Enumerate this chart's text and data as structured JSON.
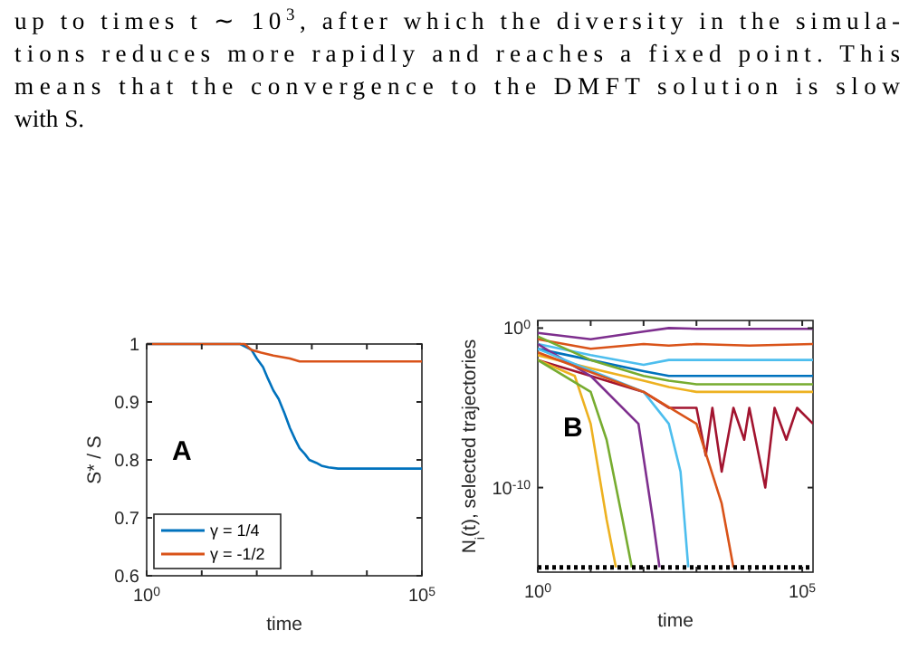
{
  "chart_data": [
    {
      "type": "line",
      "ylabel": "S* / S",
      "xlabel": "time",
      "log": "x",
      "legend": "bottom left",
      "xlim": [
        1,
        100000
      ],
      "ylim": [
        0.6,
        1
      ],
      "xticks": [
        {
          "value": 1,
          "label": "10$^{0}$"
        },
        {
          "value": 10,
          "label": null
        },
        {
          "value": 100,
          "label": null
        },
        {
          "value": 1000,
          "label": null
        },
        {
          "value": 10000,
          "label": null
        },
        {
          "value": 100000,
          "label": "10$^{5}$"
        }
      ],
      "yticks": [
        0.6,
        0.7,
        0.8,
        0.9,
        1
      ],
      "annotations": [
        "up to times t ∼ 10$^{3}$, after which the diversity in the simula-",
        "tions reduces more rapidly and reaches a fixed point. This",
        "means that the convergence to the DMFT solution is slow",
        "with S.",
        "A"
      ],
      "series": [
        {
          "name": "γ = 1/4",
          "color": "#0072bd",
          "x": [
            1,
            50,
            80,
            100,
            130,
            160,
            200,
            250,
            320,
            400,
            500,
            600,
            750,
            900,
            1200,
            1500,
            2000,
            3000,
            100000
          ],
          "values": [
            1,
            1,
            0.99,
            0.975,
            0.96,
            0.94,
            0.92,
            0.905,
            0.88,
            0.855,
            0.835,
            0.82,
            0.81,
            0.8,
            0.795,
            0.79,
            0.787,
            0.785,
            0.785
          ]
        },
        {
          "name": "γ = -1/2",
          "color": "#d95319",
          "x": [
            1,
            60,
            80,
            120,
            200,
            400,
            600,
            100000
          ],
          "values": [
            1,
            1,
            0.99,
            0.985,
            0.98,
            0.975,
            0.97,
            0.97
          ]
        }
      ]
    },
    {
      "type": "line",
      "ylabel": "N$_{i}$(t), selected trajectories",
      "xlabel": "time",
      "log": "xy",
      "xlim": [
        1,
        160000
      ],
      "ylim": [
        5e-16,
        3
      ],
      "xticks": [
        {
          "value": 1,
          "label": "10$^{0}$"
        },
        {
          "value": 10,
          "label": null
        },
        {
          "value": 100,
          "label": null
        },
        {
          "value": 1000,
          "label": null
        },
        {
          "value": 10000,
          "label": null
        },
        {
          "value": 100000,
          "label": "10$^{5}$"
        }
      ],
      "yticks": [
        {
          "value": 1e-10,
          "label": "10$^{-10}$"
        },
        {
          "value": 1,
          "label": "10$^{0}$"
        }
      ],
      "annotations": [
        "B"
      ],
      "series": [
        {
          "color": "#7e2f8e",
          "x": [
            1,
            10,
            100,
            300,
            1000,
            10000,
            160000
          ],
          "values": [
            0.5,
            0.2,
            0.6,
            1,
            0.9,
            0.9,
            0.9
          ]
        },
        {
          "color": "#d95319",
          "x": [
            1,
            10,
            100,
            300,
            1000,
            10000,
            160000
          ],
          "values": [
            0.2,
            0.05,
            0.1,
            0.08,
            0.1,
            0.08,
            0.1
          ]
        },
        {
          "color": "#4dbeee",
          "x": [
            1,
            10,
            100,
            300,
            1000,
            10000,
            160000
          ],
          "values": [
            0.1,
            0.02,
            0.005,
            0.01,
            0.01,
            0.01,
            0.01
          ]
        },
        {
          "color": "#0072bd",
          "x": [
            1,
            10,
            100,
            300,
            1000,
            10000,
            160000
          ],
          "values": [
            0.05,
            0.01,
            0.002,
            0.001,
            0.001,
            0.001,
            0.001
          ]
        },
        {
          "color": "#edb120",
          "x": [
            1,
            10,
            100,
            300,
            1000,
            10000,
            160000
          ],
          "values": [
            0.02,
            0.003,
            0.0005,
            0.0002,
            0.0001,
            0.0001,
            0.0001
          ]
        },
        {
          "color": "#77ac30",
          "x": [
            1,
            10,
            100,
            300,
            1000,
            10000,
            160000
          ],
          "values": [
            0.3,
            0.01,
            0.001,
            0.0005,
            0.0003,
            0.0003,
            0.0003
          ]
        },
        {
          "color": "#a2142f",
          "x": [
            1,
            10,
            100,
            300,
            1000,
            1500,
            2000,
            3000,
            5000,
            8000,
            10000,
            20000,
            30000,
            50000,
            80000,
            160000
          ],
          "values": [
            0.01,
            0.001,
            0.0001,
            1e-05,
            1e-05,
            1e-08,
            1e-05,
            1e-09,
            1e-05,
            1e-07,
            1e-05,
            1e-10,
            1e-05,
            1e-07,
            1e-05,
            1e-06
          ]
        },
        {
          "color": "#edb120",
          "x": [
            1,
            5,
            10,
            20,
            30
          ],
          "values": [
            0.01,
            0.001,
            1e-06,
            1e-12,
            1e-15
          ]
        },
        {
          "color": "#77ac30",
          "x": [
            1,
            10,
            20,
            40,
            60
          ],
          "values": [
            0.01,
            0.0001,
            1e-07,
            1e-12,
            1e-15
          ]
        },
        {
          "color": "#7e2f8e",
          "x": [
            1,
            10,
            80,
            150,
            200
          ],
          "values": [
            0.1,
            0.001,
            1e-06,
            1e-12,
            1e-15
          ]
        },
        {
          "color": "#4dbeee",
          "x": [
            1,
            100,
            300,
            500,
            700
          ],
          "values": [
            0.05,
            0.0001,
            1e-06,
            1e-09,
            1e-15
          ]
        },
        {
          "color": "#d95319",
          "x": [
            1,
            100,
            1000,
            3000,
            5000
          ],
          "values": [
            0.03,
            0.0001,
            1e-06,
            1e-11,
            1e-15
          ]
        },
        {
          "color": "#000000",
          "line_style": "dotted",
          "x": [
            1,
            160000
          ],
          "values": [
            1e-15,
            1e-15
          ]
        }
      ]
    }
  ]
}
